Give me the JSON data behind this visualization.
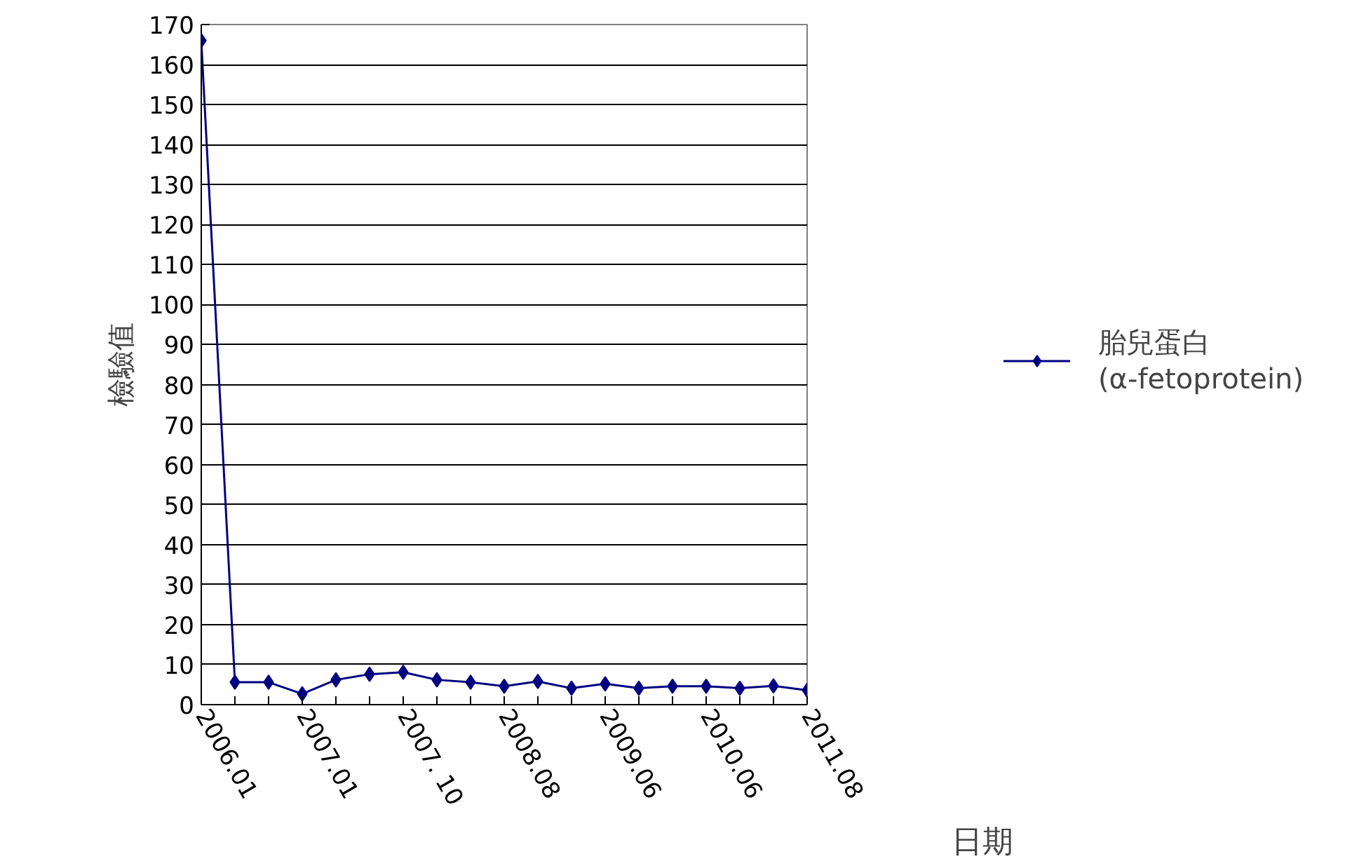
{
  "chart_data": {
    "type": "line",
    "xlabel": "日期",
    "ylabel": "檢驗值",
    "categories": [
      "2006.01",
      null,
      null,
      "2007.01",
      null,
      null,
      "2007. 10",
      null,
      null,
      "2008.08",
      null,
      null,
      "2009.06",
      null,
      null,
      "2010.06",
      null,
      null,
      "2011.08"
    ],
    "series": [
      {
        "name": "胎兒蛋白\n(α-fetoprotein)",
        "color": "#000080",
        "values": [
          166,
          5.6,
          5.6,
          2.7,
          6.2,
          7.6,
          8.1,
          6.2,
          5.6,
          4.6,
          5.8,
          4.1,
          5.2,
          4.1,
          4.6,
          4.6,
          4.1,
          4.7,
          3.6
        ]
      }
    ],
    "ylim": [
      0,
      170
    ],
    "yticks": [
      0,
      10,
      20,
      30,
      40,
      50,
      60,
      70,
      80,
      90,
      100,
      110,
      120,
      130,
      140,
      150,
      160,
      170
    ],
    "grid": "y",
    "legend": "right",
    "marker": "diamond",
    "line_style": "solid"
  }
}
